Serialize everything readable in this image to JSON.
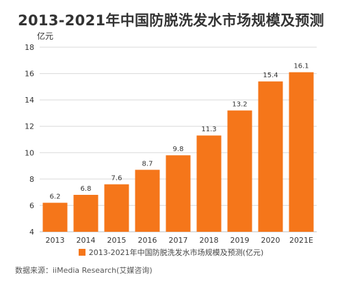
{
  "colors": {
    "bar": "#F5761A",
    "grid": "#d9d9d9",
    "axis": "#bfbfbf",
    "text": "#333333"
  },
  "chart_data": {
    "type": "bar",
    "title": "2013-2021年中国防脱洗发水市场规模及预测",
    "unit_label": "亿元",
    "categories": [
      "2013",
      "2014",
      "2015",
      "2016",
      "2017",
      "2018",
      "2019",
      "2020",
      "2021E"
    ],
    "series": [
      {
        "name": "2013-2021年中国防脱洗发水市场规模及预测(亿元)",
        "values": [
          6.2,
          6.8,
          7.6,
          8.7,
          9.8,
          11.3,
          13.2,
          15.4,
          16.1
        ],
        "labels": [
          "6.2",
          "6.8",
          "7.6",
          "8.7",
          "9.8",
          "11.3",
          "13.2",
          "15.4",
          "16.1"
        ]
      }
    ],
    "ylim": [
      4,
      18
    ],
    "yticks": [
      4,
      6,
      8,
      10,
      12,
      14,
      16,
      18
    ],
    "grid": true,
    "legend_position": "bottom"
  },
  "source_text": "数据来源：iiMedia Research(艾媒咨询)"
}
